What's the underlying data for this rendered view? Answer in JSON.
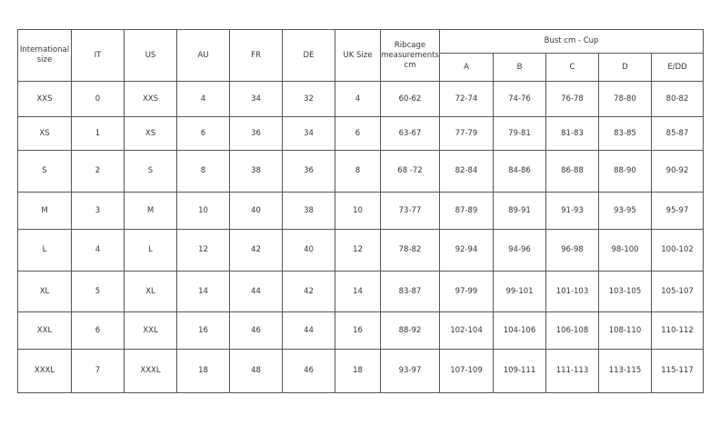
{
  "headers": {
    "international": "International size",
    "it": "IT",
    "us": "US",
    "au": "AU",
    "fr": "FR",
    "de": "DE",
    "uk": "UK Size",
    "ribcage": "Ribcage measurements cm",
    "bust": "Bust cm - Cup",
    "cups": [
      "A",
      "B",
      "C",
      "D",
      "E/DD"
    ]
  },
  "rows": [
    [
      "XXS",
      "0",
      "XXS",
      "4",
      "34",
      "32",
      "4",
      "60-62",
      "72-74",
      "74-76",
      "76-78",
      "78-80",
      "80-82"
    ],
    [
      "XS",
      "1",
      "XS",
      "6",
      "36",
      "34",
      "6",
      "63-67",
      "77-79",
      "79-81",
      "81-83",
      "83-85",
      "85-87"
    ],
    [
      "S",
      "2",
      "S",
      "8",
      "38",
      "36",
      "8",
      "68 -72",
      "82-84",
      "84-86",
      "86-88",
      "88-90",
      "90-92"
    ],
    [
      "M",
      "3",
      "M",
      "10",
      "40",
      "38",
      "10",
      "73-77",
      "87-89",
      "89-91",
      "91-93",
      "93-95",
      "95-97"
    ],
    [
      "L",
      "4",
      "L",
      "12",
      "42",
      "40",
      "12",
      "78-82",
      "92-94",
      "94-96",
      "96-98",
      "98-100",
      "100-102"
    ],
    [
      "XL",
      "5",
      "XL",
      "14",
      "44",
      "42",
      "14",
      "83-87",
      "97-99",
      "99-101",
      "101-103",
      "103-105",
      "105-107"
    ],
    [
      "XXL",
      "6",
      "XXL",
      "16",
      "46",
      "44",
      "16",
      "88-92",
      "102-104",
      "104-106",
      "106-108",
      "108-110",
      "110-112"
    ],
    [
      "XXXL",
      "7",
      "XXXL",
      "18",
      "48",
      "46",
      "18",
      "93-97",
      "107-109",
      "109-111",
      "111-113",
      "113-115",
      "115-117"
    ]
  ]
}
